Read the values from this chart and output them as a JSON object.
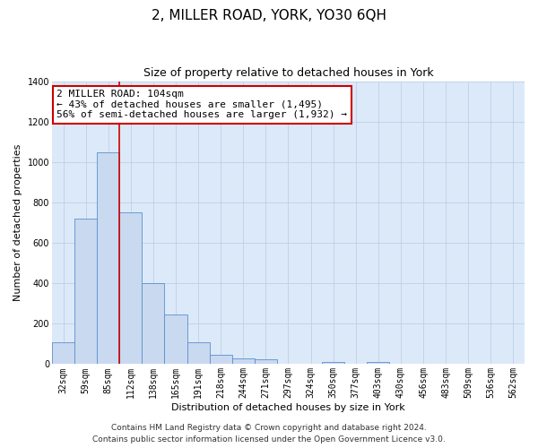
{
  "title": "2, MILLER ROAD, YORK, YO30 6QH",
  "subtitle": "Size of property relative to detached houses in York",
  "xlabel": "Distribution of detached houses by size in York",
  "ylabel": "Number of detached properties",
  "bar_labels": [
    "32sqm",
    "59sqm",
    "85sqm",
    "112sqm",
    "138sqm",
    "165sqm",
    "191sqm",
    "218sqm",
    "244sqm",
    "271sqm",
    "297sqm",
    "324sqm",
    "350sqm",
    "377sqm",
    "403sqm",
    "430sqm",
    "456sqm",
    "483sqm",
    "509sqm",
    "536sqm",
    "562sqm"
  ],
  "bar_values": [
    107,
    718,
    1047,
    750,
    400,
    245,
    110,
    47,
    27,
    25,
    0,
    0,
    10,
    0,
    10,
    0,
    0,
    0,
    0,
    0,
    0
  ],
  "bar_color": "#c9d9f0",
  "bar_edge_color": "#5b8fcc",
  "vline_index": 2.5,
  "vline_color": "#cc0000",
  "annotation_title": "2 MILLER ROAD: 104sqm",
  "annotation_line1": "← 43% of detached houses are smaller (1,495)",
  "annotation_line2": "56% of semi-detached houses are larger (1,932) →",
  "annotation_box_color": "#ffffff",
  "annotation_box_edge_color": "#cc0000",
  "ylim": [
    0,
    1400
  ],
  "yticks": [
    0,
    200,
    400,
    600,
    800,
    1000,
    1200,
    1400
  ],
  "footer1": "Contains HM Land Registry data © Crown copyright and database right 2024.",
  "footer2": "Contains public sector information licensed under the Open Government Licence v3.0.",
  "background_color": "#ffffff",
  "plot_bg_color": "#dce9f8",
  "grid_color": "#b8cce4",
  "title_fontsize": 11,
  "subtitle_fontsize": 9,
  "axis_label_fontsize": 8,
  "tick_fontsize": 7,
  "annotation_fontsize": 8,
  "footer_fontsize": 6.5
}
